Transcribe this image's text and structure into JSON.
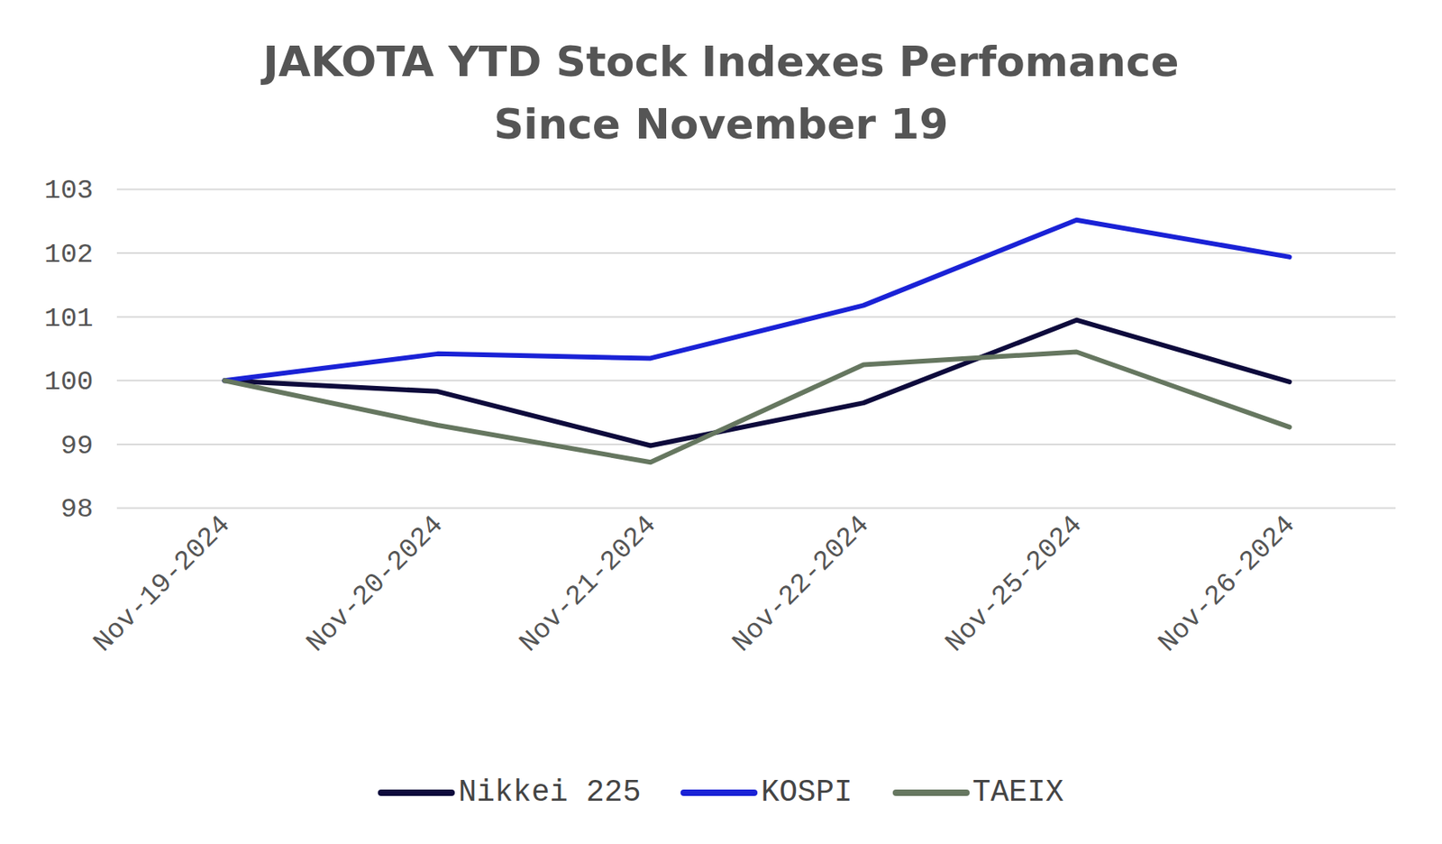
{
  "chart_data": {
    "type": "line",
    "title": "JAKOTA YTD Stock Indexes Perfomance Since November 19",
    "categories": [
      "Nov-19-2024",
      "Nov-20-2024",
      "Nov-21-2024",
      "Nov-22-2024",
      "Nov-25-2024",
      "Nov-26-2024"
    ],
    "series": [
      {
        "name": "Nikkei 225",
        "color": "#0e0b3c",
        "values": [
          100,
          99.83,
          98.98,
          99.65,
          100.95,
          99.98
        ]
      },
      {
        "name": "KOSPI",
        "color": "#1a22d6",
        "values": [
          100,
          100.42,
          100.35,
          101.18,
          102.52,
          101.94
        ]
      },
      {
        "name": "TAEIX",
        "color": "#667760",
        "values": [
          100,
          99.3,
          98.72,
          100.25,
          100.45,
          99.27
        ]
      }
    ],
    "ylim": [
      98,
      103
    ],
    "yticks": [
      98,
      99,
      100,
      101,
      102,
      103
    ],
    "grid": true,
    "legend": "bottom"
  }
}
